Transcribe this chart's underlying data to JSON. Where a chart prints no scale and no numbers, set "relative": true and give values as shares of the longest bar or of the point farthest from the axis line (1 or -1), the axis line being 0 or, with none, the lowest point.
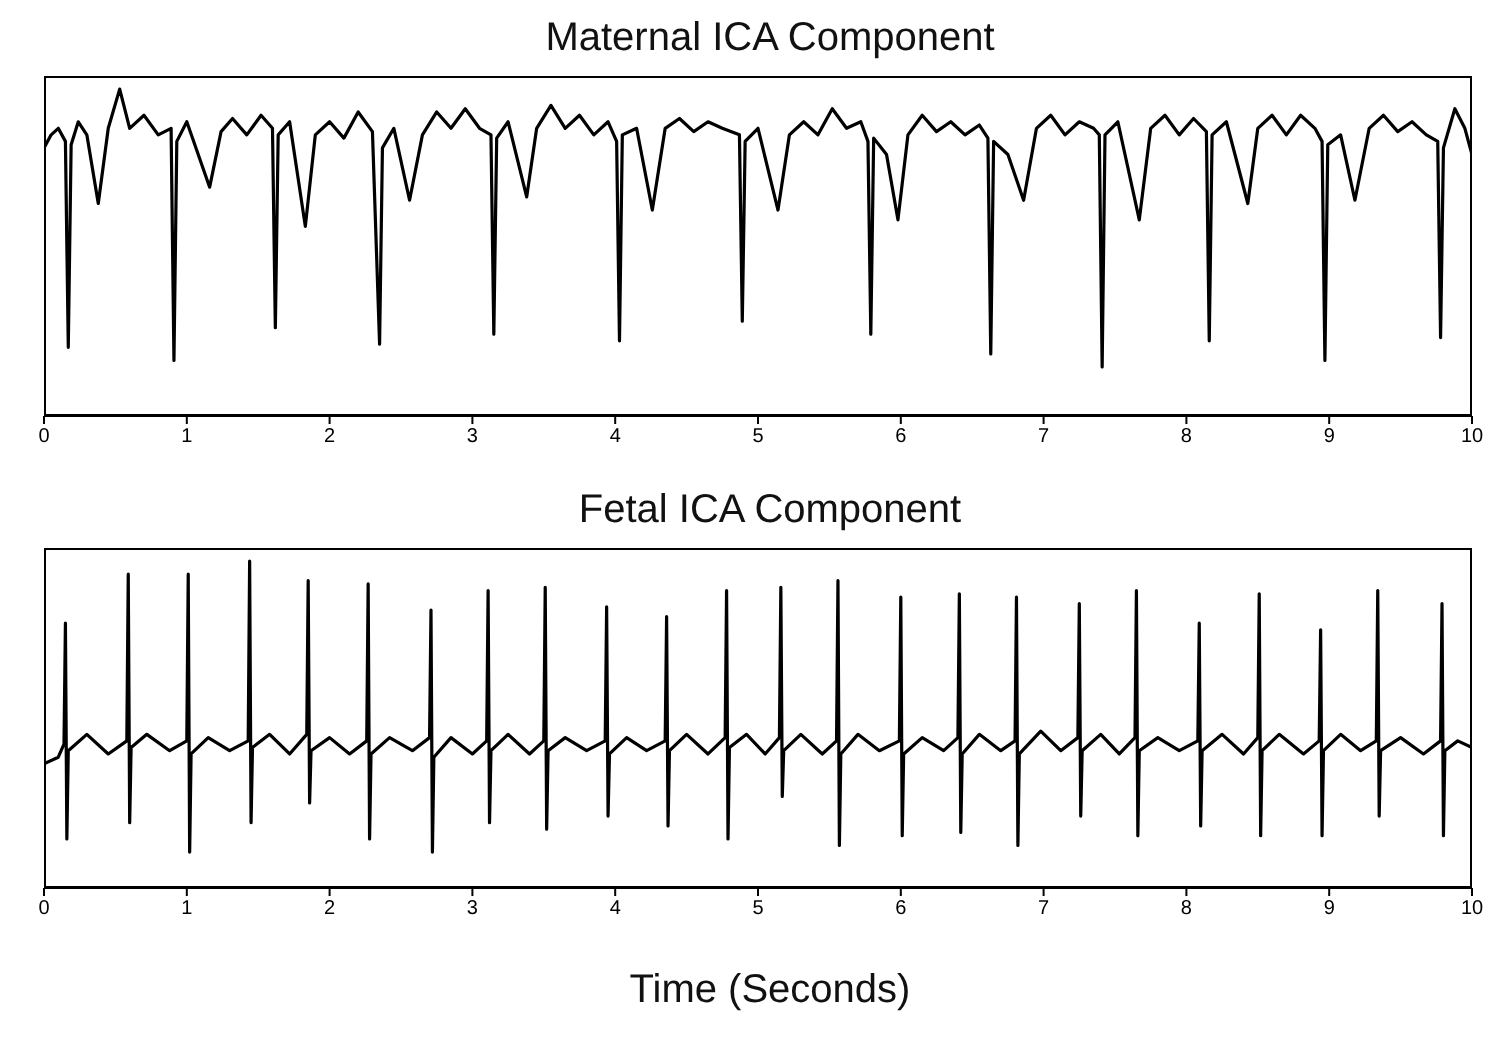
{
  "chart_data": [
    {
      "type": "line",
      "title": "Maternal ICA Component",
      "relative": true,
      "xlim": [
        0,
        10
      ],
      "xticks": [
        0,
        1,
        2,
        3,
        4,
        5,
        6,
        7,
        8,
        9,
        10
      ],
      "x": [
        0,
        0.05,
        0.1,
        0.15,
        0.17,
        0.19,
        0.24,
        0.3,
        0.38,
        0.45,
        0.53,
        0.6,
        0.7,
        0.8,
        0.89,
        0.91,
        0.93,
        1.0,
        1.08,
        1.16,
        1.24,
        1.32,
        1.42,
        1.52,
        1.6,
        1.62,
        1.64,
        1.72,
        1.83,
        1.9,
        2.0,
        2.1,
        2.2,
        2.3,
        2.35,
        2.37,
        2.45,
        2.56,
        2.65,
        2.75,
        2.85,
        2.95,
        3.05,
        3.13,
        3.15,
        3.17,
        3.25,
        3.38,
        3.45,
        3.55,
        3.65,
        3.75,
        3.85,
        3.95,
        4.01,
        4.03,
        4.05,
        4.15,
        4.26,
        4.35,
        4.45,
        4.55,
        4.65,
        4.75,
        4.87,
        4.89,
        4.91,
        5.0,
        5.14,
        5.22,
        5.32,
        5.42,
        5.52,
        5.62,
        5.72,
        5.77,
        5.79,
        5.81,
        5.9,
        5.98,
        6.05,
        6.15,
        6.25,
        6.35,
        6.45,
        6.55,
        6.61,
        6.63,
        6.65,
        6.75,
        6.86,
        6.95,
        7.05,
        7.15,
        7.25,
        7.35,
        7.39,
        7.41,
        7.43,
        7.52,
        7.67,
        7.75,
        7.85,
        7.95,
        8.05,
        8.14,
        8.16,
        8.18,
        8.28,
        8.43,
        8.5,
        8.6,
        8.7,
        8.8,
        8.9,
        8.95,
        8.97,
        8.99,
        9.08,
        9.18,
        9.28,
        9.38,
        9.48,
        9.58,
        9.68,
        9.76,
        9.78,
        9.8,
        9.88,
        9.95,
        10
      ],
      "series": [
        {
          "color": "#000000",
          "values": [
            0.82,
            0.86,
            0.88,
            0.84,
            0.21,
            0.83,
            0.9,
            0.86,
            0.65,
            0.88,
            1.0,
            0.88,
            0.92,
            0.86,
            0.88,
            0.17,
            0.84,
            0.9,
            0.8,
            0.7,
            0.87,
            0.91,
            0.86,
            0.92,
            0.88,
            0.27,
            0.86,
            0.9,
            0.58,
            0.86,
            0.9,
            0.85,
            0.93,
            0.87,
            0.22,
            0.82,
            0.88,
            0.66,
            0.86,
            0.93,
            0.88,
            0.94,
            0.88,
            0.86,
            0.25,
            0.85,
            0.9,
            0.67,
            0.88,
            0.95,
            0.88,
            0.92,
            0.86,
            0.9,
            0.84,
            0.23,
            0.86,
            0.88,
            0.63,
            0.88,
            0.91,
            0.87,
            0.9,
            0.88,
            0.86,
            0.29,
            0.84,
            0.88,
            0.63,
            0.86,
            0.9,
            0.86,
            0.94,
            0.88,
            0.9,
            0.84,
            0.25,
            0.85,
            0.8,
            0.6,
            0.86,
            0.92,
            0.87,
            0.9,
            0.86,
            0.89,
            0.85,
            0.19,
            0.84,
            0.8,
            0.66,
            0.88,
            0.92,
            0.86,
            0.9,
            0.88,
            0.86,
            0.15,
            0.86,
            0.9,
            0.6,
            0.88,
            0.92,
            0.86,
            0.91,
            0.87,
            0.23,
            0.86,
            0.9,
            0.65,
            0.88,
            0.92,
            0.86,
            0.92,
            0.88,
            0.84,
            0.17,
            0.83,
            0.86,
            0.66,
            0.88,
            0.92,
            0.87,
            0.9,
            0.86,
            0.84,
            0.24,
            0.82,
            0.94,
            0.88,
            0.8
          ]
        }
      ]
    },
    {
      "type": "line",
      "title": "Fetal ICA Component",
      "xlabel": "Time (Seconds)",
      "relative": true,
      "xlim": [
        0,
        10
      ],
      "xticks": [
        0,
        1,
        2,
        3,
        4,
        5,
        6,
        7,
        8,
        9,
        10
      ],
      "x": [
        0,
        0.1,
        0.14,
        0.15,
        0.16,
        0.17,
        0.3,
        0.45,
        0.58,
        0.59,
        0.6,
        0.61,
        0.72,
        0.88,
        1.0,
        1.01,
        1.02,
        1.03,
        1.15,
        1.3,
        1.43,
        1.44,
        1.45,
        1.46,
        1.58,
        1.72,
        1.84,
        1.85,
        1.86,
        1.87,
        2.0,
        2.14,
        2.26,
        2.27,
        2.28,
        2.29,
        2.42,
        2.58,
        2.7,
        2.71,
        2.72,
        2.73,
        2.85,
        3.0,
        3.1,
        3.11,
        3.12,
        3.13,
        3.25,
        3.4,
        3.5,
        3.51,
        3.52,
        3.53,
        3.65,
        3.8,
        3.93,
        3.94,
        3.95,
        3.96,
        4.08,
        4.22,
        4.35,
        4.36,
        4.37,
        4.38,
        4.5,
        4.65,
        4.77,
        4.78,
        4.79,
        4.8,
        4.92,
        5.05,
        5.15,
        5.16,
        5.17,
        5.18,
        5.3,
        5.45,
        5.55,
        5.56,
        5.57,
        5.58,
        5.7,
        5.85,
        5.99,
        6.0,
        6.01,
        6.02,
        6.15,
        6.3,
        6.4,
        6.41,
        6.42,
        6.43,
        6.55,
        6.7,
        6.8,
        6.81,
        6.82,
        6.83,
        6.98,
        7.12,
        7.24,
        7.25,
        7.26,
        7.27,
        7.4,
        7.53,
        7.64,
        7.65,
        7.66,
        7.67,
        7.8,
        7.95,
        8.08,
        8.09,
        8.1,
        8.11,
        8.25,
        8.4,
        8.5,
        8.51,
        8.52,
        8.53,
        8.65,
        8.82,
        8.93,
        8.94,
        8.95,
        8.96,
        9.08,
        9.22,
        9.33,
        9.34,
        9.35,
        9.36,
        9.5,
        9.66,
        9.78,
        9.79,
        9.8,
        9.81,
        9.9,
        10
      ],
      "series": [
        {
          "color": "#000000",
          "values": [
            0.38,
            0.4,
            0.44,
            0.81,
            0.15,
            0.42,
            0.47,
            0.41,
            0.45,
            0.96,
            0.2,
            0.43,
            0.47,
            0.42,
            0.45,
            0.96,
            0.11,
            0.41,
            0.46,
            0.42,
            0.45,
            1.0,
            0.2,
            0.43,
            0.47,
            0.41,
            0.47,
            0.94,
            0.26,
            0.42,
            0.46,
            0.41,
            0.45,
            0.93,
            0.15,
            0.41,
            0.46,
            0.42,
            0.46,
            0.85,
            0.11,
            0.4,
            0.46,
            0.41,
            0.45,
            0.91,
            0.2,
            0.42,
            0.47,
            0.41,
            0.45,
            0.92,
            0.18,
            0.42,
            0.46,
            0.42,
            0.45,
            0.86,
            0.22,
            0.41,
            0.46,
            0.42,
            0.45,
            0.83,
            0.19,
            0.42,
            0.47,
            0.41,
            0.46,
            0.91,
            0.15,
            0.43,
            0.47,
            0.41,
            0.46,
            0.92,
            0.28,
            0.42,
            0.47,
            0.41,
            0.45,
            0.94,
            0.13,
            0.41,
            0.47,
            0.42,
            0.45,
            0.89,
            0.16,
            0.41,
            0.46,
            0.42,
            0.46,
            0.9,
            0.17,
            0.41,
            0.47,
            0.42,
            0.45,
            0.89,
            0.13,
            0.41,
            0.48,
            0.42,
            0.46,
            0.87,
            0.22,
            0.42,
            0.47,
            0.41,
            0.46,
            0.91,
            0.16,
            0.42,
            0.46,
            0.42,
            0.45,
            0.81,
            0.19,
            0.42,
            0.47,
            0.41,
            0.46,
            0.9,
            0.16,
            0.42,
            0.47,
            0.41,
            0.45,
            0.79,
            0.16,
            0.42,
            0.47,
            0.42,
            0.45,
            0.91,
            0.22,
            0.42,
            0.46,
            0.41,
            0.45,
            0.87,
            0.16,
            0.42,
            0.45,
            0.43
          ]
        }
      ]
    }
  ]
}
